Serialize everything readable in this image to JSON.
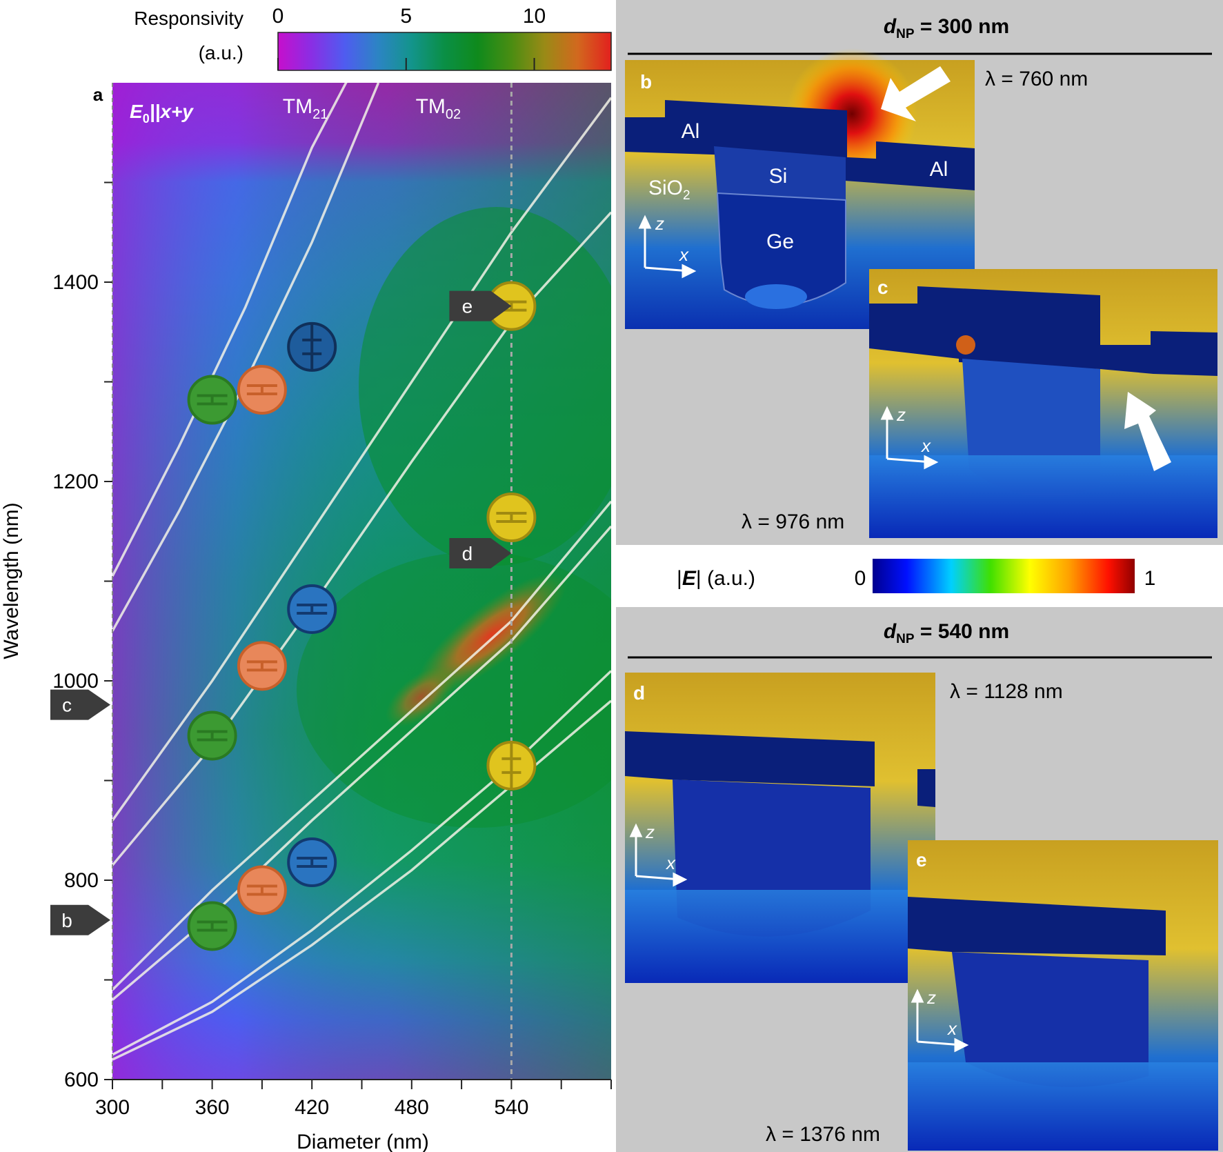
{
  "colors": {
    "responsivity_scale": [
      "#c60fcc",
      "#8a2ee4",
      "#4f5cf0",
      "#2c84c4",
      "#13948c",
      "#0a8f45",
      "#0f8a1c",
      "#4a8d12",
      "#9a8a16",
      "#d2681e",
      "#e2201e"
    ],
    "field_scale": [
      "#00008f",
      "#0010ff",
      "#00d0ff",
      "#40e000",
      "#ffff00",
      "#ffa000",
      "#ff1000",
      "#900000"
    ],
    "green_marker": "#3c9a32",
    "orange_marker": "#e8875a",
    "blue_marker": "#2a74c0",
    "yellow_marker": "#e0c41e",
    "mode_line": "#f2f2e6",
    "panel_background": "#c8c8c8",
    "tag_fill": "#3c3c3c"
  },
  "colorbar_responsivity": {
    "label_line1": "Responsivity",
    "label_line2": "(a.u.)",
    "ticks": [
      "0",
      "5",
      "10"
    ],
    "tick_values": [
      0,
      5,
      10
    ],
    "max": 13
  },
  "chart_data": {
    "type": "heatmap",
    "panel_label": "a",
    "polarization_label": "E",
    "polarization_sub": "0",
    "polarization_suffix": "||x+y",
    "xlabel": "Diameter (nm)",
    "ylabel": "Wavelength (nm)",
    "xlim": [
      300,
      600
    ],
    "ylim": [
      600,
      1600
    ],
    "x_ticks": [
      "300",
      "360",
      "420",
      "480",
      "540"
    ],
    "x_tick_values": [
      300,
      360,
      420,
      480,
      540
    ],
    "y_ticks": [
      "600",
      "800",
      "1000",
      "1200",
      "1400"
    ],
    "y_tick_values": [
      600,
      800,
      1000,
      1200,
      1400
    ],
    "dashed_line_x": 540,
    "mode_labels": [
      {
        "text": "TM",
        "sub": "21",
        "x": 416,
        "y": 1558
      },
      {
        "text": "TM",
        "sub": "02",
        "x": 496,
        "y": 1558
      }
    ],
    "mode_curves": [
      {
        "name": "upper-1",
        "points": [
          [
            300,
            1105
          ],
          [
            340,
            1235
          ],
          [
            380,
            1375
          ],
          [
            420,
            1535
          ],
          [
            450,
            1630
          ]
        ]
      },
      {
        "name": "upper-2",
        "points": [
          [
            300,
            1050
          ],
          [
            340,
            1170
          ],
          [
            380,
            1300
          ],
          [
            420,
            1440
          ],
          [
            460,
            1600
          ]
        ]
      },
      {
        "name": "mid-1",
        "points": [
          [
            300,
            860
          ],
          [
            360,
            1000
          ],
          [
            420,
            1150
          ],
          [
            480,
            1300
          ],
          [
            540,
            1450
          ],
          [
            600,
            1585
          ]
        ]
      },
      {
        "name": "mid-2",
        "points": [
          [
            300,
            815
          ],
          [
            360,
            935
          ],
          [
            420,
            1075
          ],
          [
            480,
            1220
          ],
          [
            540,
            1360
          ],
          [
            600,
            1470
          ]
        ]
      },
      {
        "name": "low-1",
        "points": [
          [
            300,
            690
          ],
          [
            360,
            790
          ],
          [
            420,
            880
          ],
          [
            480,
            970
          ],
          [
            540,
            1060
          ],
          [
            600,
            1180
          ]
        ]
      },
      {
        "name": "low-2",
        "points": [
          [
            300,
            680
          ],
          [
            360,
            765
          ],
          [
            420,
            860
          ],
          [
            480,
            950
          ],
          [
            540,
            1040
          ],
          [
            600,
            1155
          ]
        ]
      },
      {
        "name": "bottom-1",
        "points": [
          [
            300,
            625
          ],
          [
            360,
            678
          ],
          [
            420,
            750
          ],
          [
            480,
            830
          ],
          [
            540,
            915
          ],
          [
            600,
            1010
          ]
        ]
      },
      {
        "name": "bottom-2",
        "points": [
          [
            300,
            620
          ],
          [
            360,
            668
          ],
          [
            420,
            735
          ],
          [
            480,
            810
          ],
          [
            540,
            895
          ],
          [
            600,
            980
          ]
        ]
      }
    ],
    "markers": [
      {
        "x": 360,
        "y": 1282,
        "color": "green",
        "symbol": "h"
      },
      {
        "x": 390,
        "y": 1292,
        "color": "orange",
        "symbol": "h"
      },
      {
        "x": 420,
        "y": 1335,
        "color": "blue_dark",
        "symbol": "v"
      },
      {
        "x": 360,
        "y": 945,
        "color": "green",
        "symbol": "h"
      },
      {
        "x": 390,
        "y": 1015,
        "color": "orange",
        "symbol": "h"
      },
      {
        "x": 420,
        "y": 1072,
        "color": "blue",
        "symbol": "h"
      },
      {
        "x": 360,
        "y": 754,
        "color": "green",
        "symbol": "h"
      },
      {
        "x": 390,
        "y": 790,
        "color": "orange",
        "symbol": "h"
      },
      {
        "x": 420,
        "y": 818,
        "color": "blue",
        "symbol": "h"
      },
      {
        "x": 540,
        "y": 1376,
        "color": "yellow",
        "symbol": "h"
      },
      {
        "x": 540,
        "y": 1164,
        "color": "yellow",
        "symbol": "h"
      },
      {
        "x": 540,
        "y": 915,
        "color": "yellow",
        "symbol": "v"
      }
    ],
    "arrow_tags": [
      {
        "label": "e",
        "side": "right",
        "x": 540,
        "y": 1376
      },
      {
        "label": "d",
        "side": "right",
        "x": 540,
        "y": 1128
      },
      {
        "label": "c",
        "side": "left",
        "y": 976
      },
      {
        "label": "b",
        "side": "left",
        "y": 760
      }
    ]
  },
  "field_maps": {
    "top_header_d": "d",
    "top_header_sub": "NP",
    "top_header_rest": " = 300 nm",
    "bottom_header_d": "d",
    "bottom_header_sub": "NP",
    "bottom_header_rest": " = 540 nm",
    "panels": [
      {
        "label": "b",
        "wavelength": "λ = 760 nm"
      },
      {
        "label": "c",
        "wavelength": "λ = 976 nm"
      },
      {
        "label": "d",
        "wavelength": "λ = 1128 nm"
      },
      {
        "label": "e",
        "wavelength": "λ = 1376 nm"
      }
    ],
    "material_labels": {
      "al_left": "Al",
      "al_right": "Al",
      "si": "Si",
      "sio2": "SiO",
      "sio2_sub": "2",
      "ge": "Ge"
    },
    "axis_z": "z",
    "axis_x": "x"
  },
  "colorbar_field": {
    "label": "|E| (a.u.)",
    "label_open": "|",
    "label_e": "E",
    "label_close": "| (a.u.)",
    "min": "0",
    "max": "1"
  }
}
